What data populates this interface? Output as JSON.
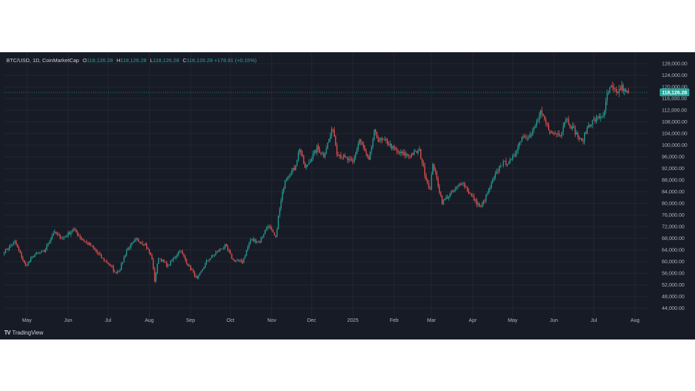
{
  "legend": {
    "symbol": "BTC/USD, 1D, CoinMarketCap",
    "open_label": "O",
    "open_value": "118,126.28",
    "high_label": "H",
    "high_value": "118,126.28",
    "low_label": "L",
    "low_value": "118,126.28",
    "close_label": "C",
    "close_value": "118,126.28",
    "change": "+178.91 (+0.15%)"
  },
  "attribution": "TradingView",
  "colors": {
    "up": "#26a69a",
    "down": "#ef5350",
    "background": "#171b26",
    "grid": "#232632",
    "axis_text": "#b2b5be"
  },
  "chart_data": {
    "type": "candlestick",
    "title": "",
    "xlabel": "",
    "ylabel": "",
    "price_axis_side": "right",
    "last_price": 118126.28,
    "last_price_label": "118,126.28",
    "ylim": [
      41500,
      129500
    ],
    "y_ticks": [
      44000,
      48000,
      52000,
      56000,
      60000,
      64000,
      68000,
      72000,
      76000,
      80000,
      84000,
      88000,
      92000,
      96000,
      100000,
      104000,
      108000,
      112000,
      116000,
      120000,
      124000,
      128000
    ],
    "y_tick_labels": [
      "44,000.00",
      "48,000.00",
      "52,000.00",
      "56,000.00",
      "60,000.00",
      "64,000.00",
      "68,000.00",
      "72,000.00",
      "76,000.00",
      "80,000.00",
      "84,000.00",
      "88,000.00",
      "92,000.00",
      "96,000.00",
      "100,000.00",
      "104,000.00",
      "108,000.00",
      "112,000.00",
      "116,000.00",
      "120,000.00",
      "124,000.00",
      "128,000.00"
    ],
    "x_ticks": [
      {
        "label": "May",
        "date": "2024-05-01"
      },
      {
        "label": "Jun",
        "date": "2024-06-01"
      },
      {
        "label": "Jul",
        "date": "2024-07-01"
      },
      {
        "label": "Aug",
        "date": "2024-08-01"
      },
      {
        "label": "Sep",
        "date": "2024-09-01"
      },
      {
        "label": "Oct",
        "date": "2024-10-01"
      },
      {
        "label": "Nov",
        "date": "2024-11-01"
      },
      {
        "label": "Dec",
        "date": "2024-12-01"
      },
      {
        "label": "2025",
        "date": "2025-01-01"
      },
      {
        "label": "Feb",
        "date": "2025-02-01"
      },
      {
        "label": "Mar",
        "date": "2025-03-01"
      },
      {
        "label": "Apr",
        "date": "2025-04-01"
      },
      {
        "label": "May",
        "date": "2025-05-01"
      },
      {
        "label": "Jun",
        "date": "2025-06-01"
      },
      {
        "label": "Jul",
        "date": "2025-07-01"
      },
      {
        "label": "Aug",
        "date": "2025-08-01"
      }
    ],
    "x_range": [
      "2024-04-14",
      "2025-08-11"
    ],
    "closes": [
      {
        "date": "2024-04-14",
        "close": 63500
      },
      {
        "date": "2024-04-22",
        "close": 66800
      },
      {
        "date": "2024-04-30",
        "close": 58500
      },
      {
        "date": "2024-05-07",
        "close": 62500
      },
      {
        "date": "2024-05-14",
        "close": 63500
      },
      {
        "date": "2024-05-21",
        "close": 70000
      },
      {
        "date": "2024-05-28",
        "close": 68000
      },
      {
        "date": "2024-06-05",
        "close": 71000
      },
      {
        "date": "2024-06-12",
        "close": 67500
      },
      {
        "date": "2024-06-18",
        "close": 65500
      },
      {
        "date": "2024-06-26",
        "close": 61500
      },
      {
        "date": "2024-07-04",
        "close": 58000
      },
      {
        "date": "2024-07-06",
        "close": 56000
      },
      {
        "date": "2024-07-10",
        "close": 57500
      },
      {
        "date": "2024-07-15",
        "close": 64000
      },
      {
        "date": "2024-07-22",
        "close": 67500
      },
      {
        "date": "2024-07-29",
        "close": 66000
      },
      {
        "date": "2024-08-03",
        "close": 61000
      },
      {
        "date": "2024-08-05",
        "close": 53500
      },
      {
        "date": "2024-08-08",
        "close": 61500
      },
      {
        "date": "2024-08-15",
        "close": 58500
      },
      {
        "date": "2024-08-24",
        "close": 64000
      },
      {
        "date": "2024-08-30",
        "close": 59000
      },
      {
        "date": "2024-09-06",
        "close": 54000
      },
      {
        "date": "2024-09-13",
        "close": 60000
      },
      {
        "date": "2024-09-20",
        "close": 63000
      },
      {
        "date": "2024-09-27",
        "close": 65500
      },
      {
        "date": "2024-10-03",
        "close": 60500
      },
      {
        "date": "2024-10-10",
        "close": 60000
      },
      {
        "date": "2024-10-16",
        "close": 67500
      },
      {
        "date": "2024-10-23",
        "close": 67000
      },
      {
        "date": "2024-10-29",
        "close": 72500
      },
      {
        "date": "2024-11-04",
        "close": 68000
      },
      {
        "date": "2024-11-06",
        "close": 75500
      },
      {
        "date": "2024-11-11",
        "close": 88500
      },
      {
        "date": "2024-11-18",
        "close": 92000
      },
      {
        "date": "2024-11-22",
        "close": 99000
      },
      {
        "date": "2024-11-26",
        "close": 92000
      },
      {
        "date": "2024-12-02",
        "close": 96500
      },
      {
        "date": "2024-12-05",
        "close": 99000
      },
      {
        "date": "2024-12-10",
        "close": 96500
      },
      {
        "date": "2024-12-17",
        "close": 106000
      },
      {
        "date": "2024-12-20",
        "close": 97500
      },
      {
        "date": "2024-12-26",
        "close": 95500
      },
      {
        "date": "2025-01-01",
        "close": 94000
      },
      {
        "date": "2025-01-06",
        "close": 102000
      },
      {
        "date": "2025-01-13",
        "close": 94500
      },
      {
        "date": "2025-01-17",
        "close": 104500
      },
      {
        "date": "2025-01-20",
        "close": 102000
      },
      {
        "date": "2025-01-27",
        "close": 101000
      },
      {
        "date": "2025-02-03",
        "close": 97500
      },
      {
        "date": "2025-02-12",
        "close": 96500
      },
      {
        "date": "2025-02-20",
        "close": 98000
      },
      {
        "date": "2025-02-25",
        "close": 88500
      },
      {
        "date": "2025-02-28",
        "close": 84500
      },
      {
        "date": "2025-03-02",
        "close": 94000
      },
      {
        "date": "2025-03-09",
        "close": 80500
      },
      {
        "date": "2025-03-17",
        "close": 84000
      },
      {
        "date": "2025-03-24",
        "close": 87500
      },
      {
        "date": "2025-03-31",
        "close": 82500
      },
      {
        "date": "2025-04-07",
        "close": 78500
      },
      {
        "date": "2025-04-13",
        "close": 84500
      },
      {
        "date": "2025-04-22",
        "close": 93500
      },
      {
        "date": "2025-04-30",
        "close": 94500
      },
      {
        "date": "2025-05-08",
        "close": 103000
      },
      {
        "date": "2025-05-15",
        "close": 103500
      },
      {
        "date": "2025-05-22",
        "close": 111000
      },
      {
        "date": "2025-05-30",
        "close": 104000
      },
      {
        "date": "2025-06-06",
        "close": 104000
      },
      {
        "date": "2025-06-10",
        "close": 109500
      },
      {
        "date": "2025-06-17",
        "close": 104500
      },
      {
        "date": "2025-06-22",
        "close": 101000
      },
      {
        "date": "2025-06-27",
        "close": 107000
      },
      {
        "date": "2025-07-03",
        "close": 109000
      },
      {
        "date": "2025-07-09",
        "close": 111000
      },
      {
        "date": "2025-07-11",
        "close": 117500
      },
      {
        "date": "2025-07-14",
        "close": 119800
      },
      {
        "date": "2025-07-18",
        "close": 117800
      },
      {
        "date": "2025-07-22",
        "close": 119900
      },
      {
        "date": "2025-07-25",
        "close": 117900
      },
      {
        "date": "2025-07-27",
        "close": 118126.28
      }
    ]
  }
}
